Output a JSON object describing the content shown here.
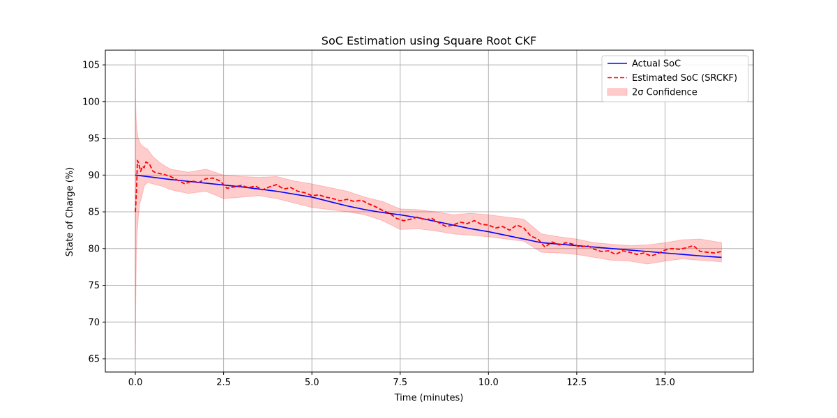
{
  "chart_data": {
    "type": "line",
    "title": "SoC Estimation using Square Root CKF",
    "xlabel": "Time (minutes)",
    "ylabel": "State of Charge (%)",
    "xlim": [
      -0.85,
      17.5
    ],
    "ylim": [
      63.2,
      107.0
    ],
    "xticks": [
      0.0,
      2.5,
      5.0,
      7.5,
      10.0,
      12.5,
      15.0
    ],
    "xtick_labels": [
      "0.0",
      "2.5",
      "5.0",
      "7.5",
      "10.0",
      "12.5",
      "15.0"
    ],
    "yticks": [
      65,
      70,
      75,
      80,
      85,
      90,
      95,
      100,
      105
    ],
    "ytick_labels": [
      "65",
      "70",
      "75",
      "80",
      "85",
      "90",
      "95",
      "100",
      "105"
    ],
    "grid": true,
    "legend_position": "top-right",
    "series": [
      {
        "name": "Actual SoC",
        "color": "#0000ff",
        "style": "solid",
        "x": [
          0,
          1,
          2,
          3,
          4,
          5,
          5.5,
          6,
          6.5,
          7,
          7.5,
          8,
          8.5,
          9,
          9.5,
          10,
          10.5,
          11,
          11.5,
          12,
          12.5,
          13,
          13.5,
          14,
          14.5,
          15,
          15.5,
          16,
          16.6
        ],
        "y": [
          90.0,
          89.4,
          88.9,
          88.4,
          87.8,
          87.0,
          86.4,
          85.8,
          85.3,
          84.9,
          84.6,
          84.2,
          83.7,
          83.2,
          82.7,
          82.3,
          81.8,
          81.3,
          80.8,
          80.6,
          80.4,
          80.2,
          80.0,
          79.8,
          79.6,
          79.4,
          79.2,
          79.0,
          78.8
        ]
      },
      {
        "name": "Estimated SoC (SRCKF)",
        "color": "#ff0000",
        "style": "dashed",
        "x": [
          0,
          0.03,
          0.06,
          0.1,
          0.15,
          0.2,
          0.25,
          0.3,
          0.4,
          0.5,
          0.6,
          0.8,
          1.0,
          1.2,
          1.4,
          1.6,
          1.8,
          2.0,
          2.2,
          2.4,
          2.6,
          2.8,
          3.0,
          3.2,
          3.4,
          3.6,
          3.8,
          4.0,
          4.2,
          4.4,
          4.6,
          4.8,
          5.0,
          5.2,
          5.4,
          5.6,
          5.8,
          6.0,
          6.2,
          6.4,
          6.6,
          6.8,
          7.0,
          7.2,
          7.4,
          7.6,
          7.8,
          8.0,
          8.2,
          8.4,
          8.6,
          8.8,
          9.0,
          9.2,
          9.4,
          9.6,
          9.8,
          10.0,
          10.2,
          10.4,
          10.6,
          10.8,
          11.0,
          11.2,
          11.4,
          11.6,
          11.8,
          12.0,
          12.2,
          12.4,
          12.6,
          12.8,
          13.0,
          13.2,
          13.4,
          13.6,
          13.8,
          14.0,
          14.2,
          14.4,
          14.6,
          14.8,
          15.0,
          15.2,
          15.4,
          15.6,
          15.8,
          16.0,
          16.2,
          16.4,
          16.6
        ],
        "y": [
          85.0,
          87.5,
          92.0,
          91.5,
          90.5,
          91.2,
          91.0,
          91.8,
          91.5,
          90.5,
          90.3,
          90.1,
          89.8,
          89.3,
          88.8,
          89.2,
          89.0,
          89.5,
          89.6,
          89.2,
          88.2,
          88.4,
          88.6,
          88.3,
          88.5,
          88.0,
          88.4,
          88.7,
          88.1,
          88.3,
          87.8,
          87.6,
          87.2,
          87.3,
          87.0,
          86.8,
          86.5,
          86.7,
          86.4,
          86.6,
          86.1,
          85.7,
          85.2,
          84.8,
          84.1,
          83.8,
          84.0,
          84.3,
          83.9,
          84.1,
          83.5,
          83.0,
          83.2,
          83.6,
          83.4,
          83.8,
          83.3,
          83.2,
          82.8,
          83.0,
          82.5,
          83.2,
          82.8,
          81.7,
          81.3,
          80.2,
          80.9,
          80.5,
          80.8,
          80.6,
          80.2,
          80.4,
          79.9,
          79.6,
          79.7,
          79.2,
          79.7,
          79.5,
          79.2,
          79.4,
          79.0,
          79.3,
          79.8,
          80.0,
          79.9,
          80.1,
          80.4,
          79.6,
          79.5,
          79.4,
          79.6
        ]
      },
      {
        "name": "2σ Confidence",
        "color": "#ff0000",
        "fill_opacity": 0.2,
        "type": "band",
        "x": [
          0,
          0.01,
          0.02,
          0.03,
          0.05,
          0.08,
          0.12,
          0.18,
          0.25,
          0.35,
          0.5,
          0.75,
          1.0,
          1.5,
          2.0,
          2.5,
          3.0,
          3.5,
          4.0,
          4.5,
          5.0,
          5.5,
          6.0,
          6.5,
          7.0,
          7.5,
          8.0,
          8.5,
          9.0,
          9.5,
          10.0,
          10.5,
          11.0,
          11.5,
          12.0,
          12.5,
          13.0,
          13.5,
          14.0,
          14.5,
          15.0,
          15.5,
          16.0,
          16.6
        ],
        "lower": [
          65.0,
          72.0,
          76.0,
          80.0,
          82.0,
          84.0,
          86.0,
          87.0,
          88.5,
          89.0,
          88.8,
          88.5,
          88.0,
          87.5,
          87.8,
          86.8,
          87.0,
          87.2,
          86.8,
          86.2,
          85.6,
          85.3,
          85.0,
          84.6,
          83.8,
          82.6,
          82.7,
          82.4,
          82.0,
          81.8,
          81.6,
          81.3,
          81.0,
          79.5,
          79.4,
          79.2,
          78.8,
          78.4,
          78.3,
          77.9,
          78.3,
          78.6,
          78.4,
          78.2
        ],
        "upper": [
          105.0,
          100.0,
          98.0,
          97.0,
          96.0,
          95.0,
          94.5,
          94.0,
          93.8,
          93.5,
          92.5,
          91.5,
          90.8,
          90.4,
          90.8,
          90.0,
          89.8,
          89.7,
          89.8,
          89.2,
          88.8,
          88.3,
          87.8,
          87.0,
          86.4,
          85.4,
          85.3,
          85.0,
          84.6,
          84.8,
          84.6,
          84.3,
          84.0,
          82.0,
          81.6,
          81.3,
          80.8,
          80.6,
          80.4,
          80.5,
          80.8,
          81.2,
          81.3,
          80.8
        ]
      }
    ]
  }
}
